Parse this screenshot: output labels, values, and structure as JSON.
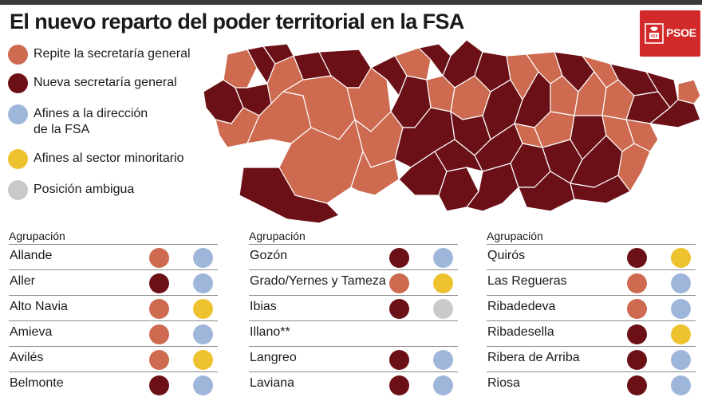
{
  "title": "El nuevo reparto del poder territorial en la FSA",
  "logo": {
    "text": "PSOE"
  },
  "colors": {
    "repite": "#cd6a4f",
    "nueva": "#6c1018",
    "afines_direccion": "#9fb6db",
    "afines_minoritario": "#edc22e",
    "ambigua": "#c9c9c9",
    "logo_red": "#d22a2a"
  },
  "legend": [
    {
      "label": "Repite la secretaría general",
      "color": "#cd6a4f"
    },
    {
      "label": "Nueva secretaría general",
      "color": "#6c1018"
    },
    {
      "label": "Afines a la dirección",
      "label2": "de la FSA",
      "color": "#9fb6db"
    },
    {
      "label": "Afines al sector minoritario",
      "color": "#edc22e"
    },
    {
      "label": "Posición ambigua",
      "color": "#c9c9c9"
    }
  ],
  "columns": [
    {
      "header": "Agrupación",
      "rows": [
        {
          "name": "Allande",
          "secretaria": "#cd6a4f",
          "posicion": "#9fb6db"
        },
        {
          "name": "Aller",
          "secretaria": "#6c1018",
          "posicion": "#9fb6db"
        },
        {
          "name": "Alto Navia",
          "secretaria": "#cd6a4f",
          "posicion": "#edc22e"
        },
        {
          "name": "Amieva",
          "secretaria": "#cd6a4f",
          "posicion": "#9fb6db"
        },
        {
          "name": "Avilés",
          "secretaria": "#cd6a4f",
          "posicion": "#edc22e"
        },
        {
          "name": "Belmonte",
          "secretaria": "#6c1018",
          "posicion": "#9fb6db"
        }
      ]
    },
    {
      "header": "Agrupación",
      "rows": [
        {
          "name": "Gozón",
          "secretaria": "#6c1018",
          "posicion": "#9fb6db"
        },
        {
          "name": "Grado/Yernes y Tameza",
          "secretaria": "#cd6a4f",
          "posicion": "#edc22e"
        },
        {
          "name": "Ibias",
          "secretaria": "#6c1018",
          "posicion": "#c9c9c9"
        },
        {
          "name": "Illano**",
          "secretaria": null,
          "posicion": null
        },
        {
          "name": "Langreo",
          "secretaria": "#6c1018",
          "posicion": "#9fb6db"
        },
        {
          "name": "Laviana",
          "secretaria": "#6c1018",
          "posicion": "#9fb6db"
        }
      ]
    },
    {
      "header": "Agrupación",
      "rows": [
        {
          "name": "Quirós",
          "secretaria": "#6c1018",
          "posicion": "#edc22e"
        },
        {
          "name": "Las Regueras",
          "secretaria": "#cd6a4f",
          "posicion": "#9fb6db"
        },
        {
          "name": "Ribadedeva",
          "secretaria": "#cd6a4f",
          "posicion": "#9fb6db"
        },
        {
          "name": "Ribadesella",
          "secretaria": "#6c1018",
          "posicion": "#edc22e"
        },
        {
          "name": "Ribera de Arriba",
          "secretaria": "#6c1018",
          "posicion": "#9fb6db"
        },
        {
          "name": "Riosa",
          "secretaria": "#6c1018",
          "posicion": "#9fb6db"
        }
      ]
    }
  ]
}
